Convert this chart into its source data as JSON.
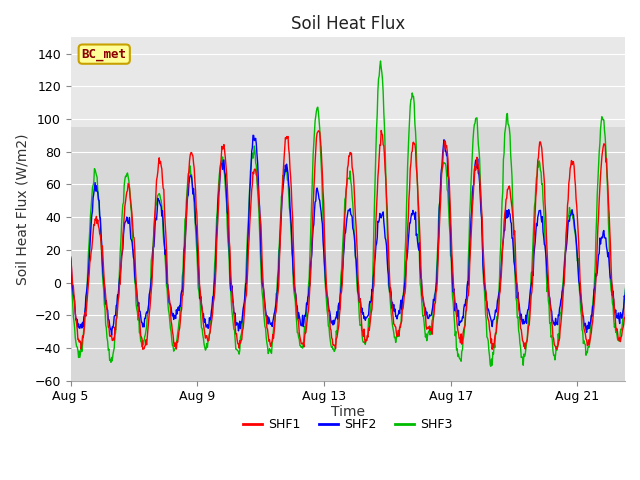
{
  "title": "Soil Heat Flux",
  "ylabel": "Soil Heat Flux (W/m2)",
  "xlabel": "Time",
  "ylim": [
    -60,
    150
  ],
  "yticks": [
    -60,
    -40,
    -20,
    0,
    20,
    40,
    60,
    80,
    100,
    120,
    140
  ],
  "xtick_labels": [
    "Aug 5",
    "Aug 9",
    "Aug 13",
    "Aug 17",
    "Aug 21"
  ],
  "shf1_color": "#ff0000",
  "shf2_color": "#0000ff",
  "shf3_color": "#00bb00",
  "outer_bg": "#ffffff",
  "plot_bg_lower": "#d8d8d8",
  "plot_bg_upper": "#e8e8e8",
  "upper_threshold": 95,
  "grid_color": "#ffffff",
  "legend_label": "BC_met",
  "legend_text_color": "#8b0000",
  "legend_bg": "#ffff99",
  "legend_border": "#c8a000",
  "title_fontsize": 12,
  "axis_label_fontsize": 10,
  "tick_fontsize": 9,
  "legend_fontsize": 9,
  "linewidth": 1.0,
  "n_days": 18
}
